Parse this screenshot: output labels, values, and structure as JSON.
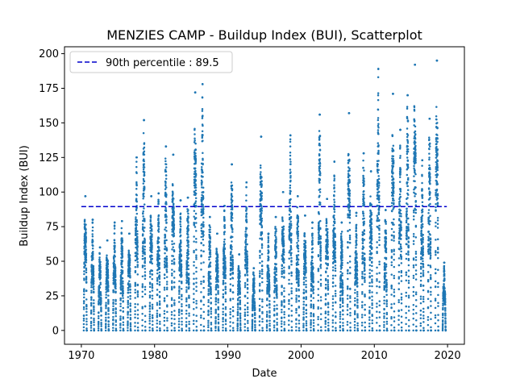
{
  "chart_data": {
    "type": "scatter",
    "title": "MENZIES CAMP - Buildup Index (BUI), Scatterplot",
    "xlabel": "Date",
    "ylabel": "Buildup Index (BUI)",
    "xlim": [
      1967.7,
      2022.3
    ],
    "ylim": [
      -10,
      205
    ],
    "x_ticks": [
      1970,
      1980,
      1990,
      2000,
      2010,
      2020
    ],
    "x_tick_labels": [
      "1970",
      "1980",
      "1990",
      "2000",
      "2010",
      "2020"
    ],
    "y_ticks": [
      0,
      25,
      50,
      75,
      100,
      125,
      150,
      175,
      200
    ],
    "y_tick_labels": [
      "0",
      "25",
      "50",
      "75",
      "100",
      "125",
      "150",
      "175",
      "200"
    ],
    "series_color": "#1f77b4",
    "reference_line_color": "#0000cc",
    "legend": {
      "label": "90th percentile : 89.5",
      "placement": "upper-left"
    },
    "percentile_90": 89.5,
    "season_start_year": 1970,
    "season_peaks": [
      97,
      80,
      60,
      65,
      78,
      79,
      70,
      125,
      152,
      97,
      99,
      133,
      127,
      94,
      96,
      172,
      178,
      82,
      70,
      90,
      120,
      55,
      107,
      45,
      140,
      70,
      82,
      100,
      141,
      97,
      83,
      78,
      156,
      95,
      122,
      78,
      157,
      85,
      128,
      115,
      189,
      87,
      171,
      145,
      170,
      192,
      123,
      153,
      195,
      49
    ],
    "series": [
      {
        "name": "Buildup Index (BUI)",
        "encoding": "seasonal daily values; each season spans roughly May-September of its year, rising from near 0 to the listed season peak",
        "season_peaks_ref": "season_peaks"
      }
    ]
  }
}
